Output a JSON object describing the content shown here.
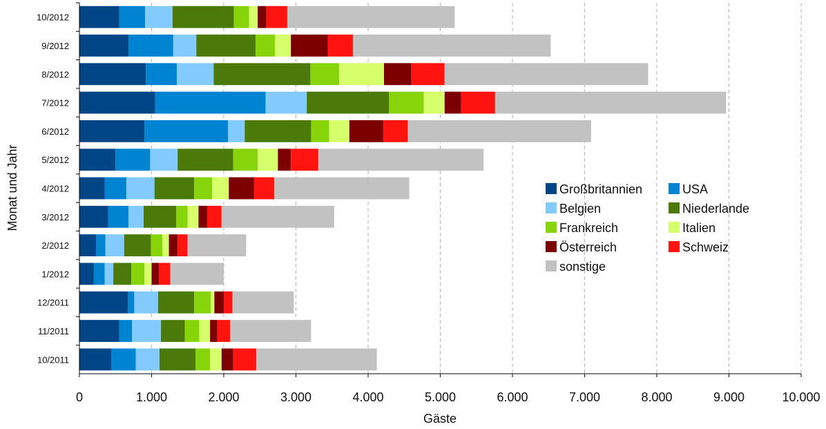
{
  "chart_data": {
    "type": "bar",
    "orientation": "horizontal",
    "stacked": true,
    "title": "",
    "xlabel": "Gäste",
    "ylabel": "Monat und Jahr",
    "xlim": [
      0,
      10000
    ],
    "xticks": [
      0,
      1000,
      2000,
      3000,
      4000,
      5000,
      6000,
      7000,
      8000,
      9000,
      10000
    ],
    "xtick_labels": [
      "0",
      "1.000",
      "2.000",
      "3.000",
      "4.000",
      "5.000",
      "6.000",
      "7.000",
      "8.000",
      "9.000",
      "10.000"
    ],
    "grid": "vertical dashed",
    "legend_position": "right-center",
    "categories": [
      "10/2011",
      "11/2011",
      "12/2011",
      "1/2012",
      "2/2012",
      "3/2012",
      "4/2012",
      "5/2012",
      "6/2012",
      "7/2012",
      "8/2012",
      "9/2012",
      "10/2012"
    ],
    "series": [
      {
        "name": "Großbritannien",
        "color": "#004586",
        "values": [
          440,
          550,
          670,
          200,
          230,
          400,
          350,
          500,
          900,
          1050,
          920,
          680,
          550
        ]
      },
      {
        "name": "USA",
        "color": "#0084d1",
        "values": [
          340,
          180,
          90,
          150,
          130,
          280,
          300,
          480,
          1160,
          1530,
          430,
          620,
          360
        ]
      },
      {
        "name": "Belgien",
        "color": "#83caff",
        "values": [
          330,
          400,
          330,
          120,
          260,
          210,
          390,
          380,
          230,
          570,
          510,
          320,
          380
        ]
      },
      {
        "name": "Niederlande",
        "color": "#4b7a0b",
        "values": [
          500,
          330,
          500,
          250,
          370,
          450,
          550,
          770,
          920,
          1140,
          1340,
          820,
          850
        ]
      },
      {
        "name": "Frankreich",
        "color": "#87d40a",
        "values": [
          200,
          200,
          230,
          180,
          160,
          160,
          250,
          340,
          250,
          480,
          400,
          270,
          210
        ]
      },
      {
        "name": "Italien",
        "color": "#d7ff6b",
        "values": [
          160,
          150,
          50,
          100,
          90,
          150,
          230,
          280,
          280,
          290,
          620,
          220,
          120
        ]
      },
      {
        "name": "Österreich",
        "color": "#7d0000",
        "values": [
          160,
          100,
          130,
          100,
          120,
          120,
          350,
          180,
          470,
          230,
          380,
          510,
          120
        ]
      },
      {
        "name": "Schweiz",
        "color": "#ff1410",
        "values": [
          320,
          180,
          120,
          160,
          140,
          200,
          280,
          380,
          340,
          470,
          460,
          350,
          290
        ]
      },
      {
        "name": "sonstige",
        "color": "#c2c2c2",
        "values": [
          1670,
          1120,
          850,
          740,
          810,
          1560,
          1870,
          2290,
          2540,
          3200,
          2820,
          2740,
          2320
        ]
      }
    ]
  }
}
